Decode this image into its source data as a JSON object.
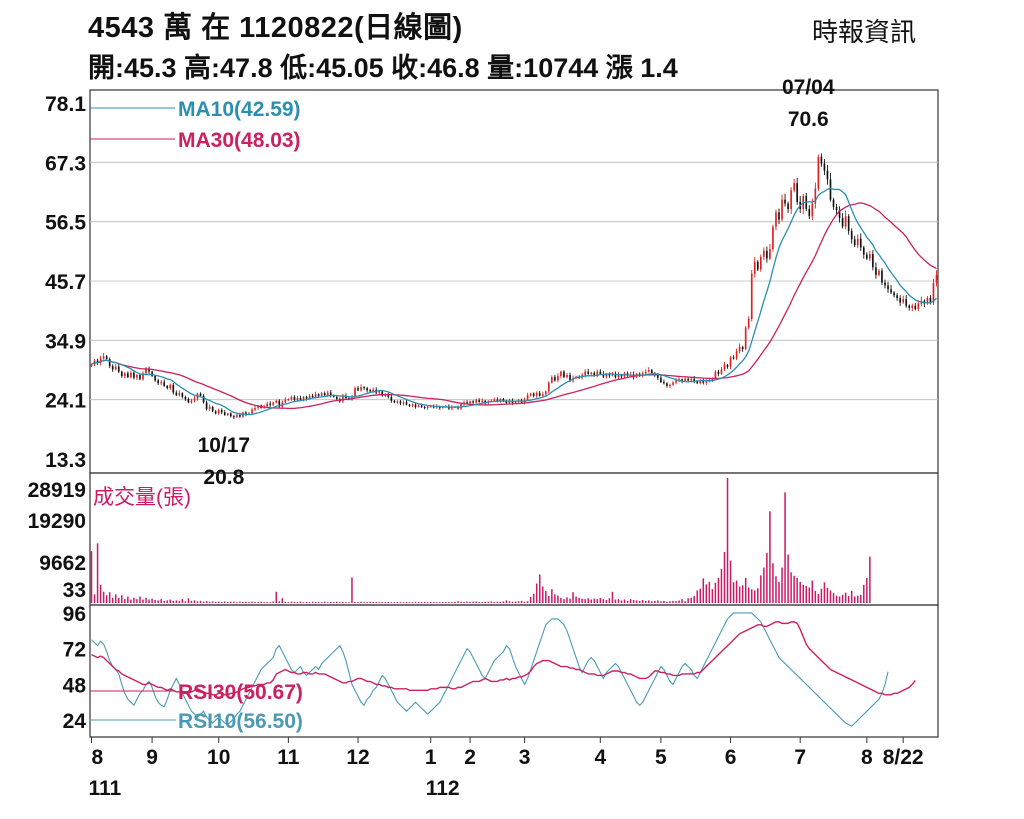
{
  "header": {
    "title": "4543  萬    在 1120822(日線圖)",
    "source": "時報資訊",
    "quote": "開:45.3 高:47.8 低:45.05 收:46.8 量:10744 漲 1.4"
  },
  "colors": {
    "up": "#e02020",
    "down": "#111111",
    "ma10": "#2a8fb0",
    "ma30": "#cc2060",
    "volume": "#cc1a66",
    "rsi10": "#4a9ab5",
    "rsi30": "#cc2060",
    "grid": "#bbbbbb"
  },
  "chart_data": [
    {
      "type": "line",
      "chart": "price",
      "ylim": [
        13.3,
        78.1
      ],
      "y_ticks": [
        "78.1",
        "67.3",
        "56.5",
        "45.7",
        "34.9",
        "24.1",
        "13.3"
      ],
      "grid": true,
      "legend_position": "top-left",
      "x_month_ticks": [
        {
          "label": "8",
          "x": 0
        },
        {
          "label": "9",
          "x": 20
        },
        {
          "label": "10",
          "x": 42
        },
        {
          "label": "11",
          "x": 65
        },
        {
          "label": "12",
          "x": 88
        },
        {
          "label": "1",
          "x": 112
        },
        {
          "label": "2",
          "x": 125
        },
        {
          "label": "3",
          "x": 143
        },
        {
          "label": "4",
          "x": 168
        },
        {
          "label": "5",
          "x": 188
        },
        {
          "label": "6",
          "x": 211
        },
        {
          "label": "7",
          "x": 234
        },
        {
          "label": "8",
          "x": 256
        },
        {
          "label": "8/22",
          "x": 268
        }
      ],
      "x_year_labels": [
        {
          "label": "111",
          "x": 0
        },
        {
          "label": "112",
          "x": 112
        }
      ],
      "close": [
        30.5,
        31.2,
        30.8,
        31.6,
        32.0,
        31.5,
        30.2,
        29.6,
        30.1,
        29.2,
        28.4,
        28.9,
        28.2,
        29.0,
        28.1,
        28.6,
        27.8,
        28.9,
        29.6,
        29.2,
        28.4,
        27.6,
        27.1,
        27.3,
        26.6,
        26.2,
        26.8,
        25.4,
        24.9,
        25.3,
        24.6,
        24.2,
        23.6,
        23.9,
        24.3,
        25.2,
        24.8,
        23.6,
        22.4,
        22.8,
        22.0,
        21.6,
        22.2,
        21.8,
        21.3,
        21.6,
        21.1,
        20.9,
        21.3,
        21.0,
        21.8,
        21.4,
        21.6,
        22.3,
        22.6,
        23.0,
        22.6,
        22.9,
        23.4,
        23.1,
        23.6,
        23.9,
        22.8,
        23.6,
        24.1,
        24.2,
        24.6,
        24.1,
        24.4,
        24.1,
        24.6,
        24.3,
        24.8,
        24.6,
        25.1,
        24.8,
        25.3,
        24.9,
        25.4,
        24.9,
        24.6,
        24.2,
        23.8,
        24.8,
        24.4,
        24.2,
        24.7,
        26.2,
        25.8,
        26.4,
        26.2,
        25.8,
        25.6,
        25.9,
        25.4,
        25.6,
        24.8,
        25.0,
        24.6,
        23.9,
        23.6,
        23.8,
        23.4,
        23.6,
        23.2,
        23.0,
        23.2,
        22.8,
        23.0,
        22.8,
        22.6,
        22.8,
        22.9,
        22.7,
        22.9,
        22.6,
        22.8,
        22.9,
        22.5,
        22.7,
        22.8,
        22.5,
        23.3,
        23.6,
        23.4,
        23.8,
        23.6,
        24.0,
        23.7,
        23.9,
        23.5,
        23.8,
        23.9,
        24.1,
        23.9,
        24.2,
        23.8,
        23.5,
        23.9,
        23.5,
        23.8,
        24.0,
        23.6,
        24.1,
        24.9,
        25.2,
        24.8,
        25.3,
        24.8,
        25.1,
        25.6,
        27.2,
        28.2,
        27.6,
        28.4,
        29.2,
        28.2,
        28.6,
        27.6,
        28.0,
        28.3,
        28.1,
        28.6,
        29.2,
        28.8,
        29.0,
        28.6,
        29.2,
        28.8,
        28.3,
        28.8,
        28.5,
        28.8,
        28.2,
        28.6,
        28.3,
        28.9,
        28.5,
        28.7,
        28.2,
        28.8,
        28.5,
        28.9,
        29.2,
        29.5,
        28.9,
        28.6,
        28.1,
        27.3,
        27.1,
        26.6,
        26.8,
        27.2,
        27.6,
        27.8,
        27.5,
        27.9,
        27.6,
        27.9,
        27.5,
        27.1,
        27.6,
        27.2,
        27.4,
        27.6,
        28.0,
        29.2,
        28.8,
        29.6,
        30.4,
        30.1,
        31.8,
        31.6,
        32.9,
        33.7,
        33.3,
        37.2,
        38.8,
        47.0,
        49.2,
        47.8,
        50.1,
        51.2,
        49.8,
        51.5,
        55.6,
        58.2,
        56.9,
        60.5,
        59.8,
        58.8,
        62.2,
        63.5,
        60.1,
        58.8,
        61.2,
        58.8,
        57.5,
        59.8,
        62.5,
        68.3,
        67.1,
        65.8,
        64.2,
        60.5,
        59.2,
        58.6,
        57.2,
        55.6,
        57.5,
        54.8,
        53.3,
        52.2,
        53.4,
        51.8,
        50.5,
        49.8,
        50.6,
        48.2,
        46.8,
        47.6,
        45.4,
        44.9,
        44.2,
        43.6,
        43.1,
        42.6,
        41.8,
        42.4,
        41.2,
        40.8,
        41.2,
        40.6,
        41.6,
        42.1,
        41.6,
        42.6,
        41.8,
        45.4,
        46.8
      ],
      "ma10_final": 42.59,
      "ma30_final": 48.03,
      "legend": [
        {
          "name": "MA10(42.59)",
          "color": "#2a8fb0"
        },
        {
          "name": "MA30(48.03)",
          "color": "#cc2060"
        }
      ],
      "annotations": [
        {
          "date": "10/17",
          "value": "20.8",
          "index": 47,
          "price": 20.8
        },
        {
          "date": "07/04",
          "value": "70.6",
          "index": 236,
          "price": 70.6
        }
      ]
    },
    {
      "type": "bar",
      "chart": "volume",
      "title": "成交量(張)",
      "y_ticks": [
        "28919",
        "19290",
        "9662",
        "33"
      ],
      "ylim": [
        0,
        28919
      ],
      "values": [
        12000,
        2000,
        13800,
        4200,
        2600,
        1800,
        2500,
        1200,
        2000,
        1200,
        1800,
        900,
        1500,
        800,
        1200,
        900,
        1500,
        800,
        1200,
        800,
        1000,
        700,
        600,
        900,
        500,
        600,
        800,
        500,
        600,
        500,
        900,
        400,
        1100,
        500,
        600,
        400,
        500,
        300,
        450,
        300,
        350,
        250,
        300,
        200,
        350,
        250,
        300,
        300,
        200,
        300,
        250,
        300,
        200,
        300,
        250,
        200,
        300,
        200,
        250,
        200,
        350,
        2600,
        400,
        1100,
        300,
        200,
        300,
        250,
        200,
        300,
        200,
        250,
        200,
        300,
        200,
        250,
        200,
        300,
        200,
        250,
        200,
        300,
        200,
        250,
        200,
        200,
        5900,
        250,
        200,
        300,
        200,
        200,
        300,
        200,
        250,
        200,
        250,
        200,
        250,
        200,
        200,
        250,
        200,
        200,
        250,
        200,
        200,
        250,
        200,
        200,
        250,
        200,
        200,
        250,
        200,
        200,
        200,
        250,
        200,
        200,
        250,
        400,
        300,
        250,
        300,
        250,
        300,
        350,
        200,
        250,
        300,
        300,
        350,
        250,
        300,
        300,
        350,
        600,
        400,
        300,
        350,
        400,
        500,
        300,
        400,
        1400,
        2100,
        4500,
        6600,
        3800,
        2800,
        1600,
        3200,
        2000,
        1700,
        1200,
        900,
        1300,
        1000,
        2500,
        1500,
        1200,
        1000,
        900,
        1100,
        800,
        1000,
        900,
        1200,
        900,
        700,
        1100,
        2600,
        800,
        900,
        600,
        800,
        500,
        900,
        700,
        600,
        500,
        700,
        500,
        600,
        400,
        500,
        600,
        400,
        500,
        300,
        400,
        500,
        450,
        600,
        900,
        400,
        1100,
        1200,
        1600,
        2900,
        3300,
        5700,
        4300,
        4900,
        3200,
        4700,
        5800,
        7900,
        11800,
        28919,
        9800,
        4800,
        5200,
        3800,
        4100,
        5800,
        3600,
        3200,
        2900,
        3400,
        6400,
        8200,
        11600,
        21200,
        9200,
        6200,
        4900,
        8200,
        25600,
        11200,
        7100,
        6300,
        5800,
        4900,
        4200,
        3900,
        3600,
        5200,
        2800,
        2100,
        3300,
        4800,
        3500,
        2900,
        2300,
        1700,
        1500,
        1900,
        2400,
        1600,
        2800,
        1500,
        1700,
        1900,
        4200,
        5800,
        10744
      ]
    },
    {
      "type": "line",
      "chart": "rsi",
      "y_ticks": [
        "96",
        "72",
        "48",
        "24"
      ],
      "ylim": [
        14,
        100
      ],
      "series": [
        {
          "name": "RSI30(50.67)",
          "color": "#cc2060",
          "values": [
            68,
            67,
            66,
            67,
            66,
            64,
            62,
            60,
            58,
            57,
            55,
            54,
            53,
            52,
            51,
            50,
            49,
            48,
            48,
            49,
            48,
            47,
            46,
            46,
            45,
            44,
            45,
            44,
            43,
            43,
            42,
            42,
            42,
            43,
            44,
            45,
            44,
            43,
            42,
            42,
            41,
            41,
            42,
            42,
            41,
            41,
            42,
            42,
            43,
            44,
            45,
            46,
            46,
            47,
            47,
            48,
            48,
            48,
            49,
            49,
            51,
            55,
            56,
            57,
            58,
            57,
            56,
            56,
            55,
            55,
            56,
            56,
            55,
            55,
            56,
            55,
            55,
            55,
            54,
            53,
            52,
            51,
            50,
            49,
            49,
            50,
            50,
            51,
            52,
            52,
            51,
            50,
            50,
            49,
            48,
            48,
            47,
            47,
            46,
            46,
            45,
            45,
            45,
            45,
            45,
            44,
            44,
            44,
            44,
            44,
            44,
            44,
            45,
            45,
            45,
            46,
            46,
            46,
            46,
            45,
            45,
            46,
            46,
            47,
            48,
            49,
            50,
            50,
            50,
            51,
            52,
            51,
            50,
            50,
            50,
            51,
            51,
            52,
            51,
            52,
            52,
            53,
            53,
            54,
            55,
            57,
            60,
            62,
            63,
            64,
            64,
            64,
            63,
            62,
            61,
            60,
            60,
            60,
            59,
            59,
            58,
            58,
            57,
            56,
            55,
            55,
            55,
            54,
            54,
            54,
            55,
            56,
            57,
            57,
            57,
            56,
            56,
            55,
            55,
            54,
            53,
            52,
            52,
            52,
            53,
            55,
            57,
            57,
            56,
            56,
            55,
            55,
            54,
            54,
            54,
            55,
            55,
            55,
            55,
            55,
            56,
            56,
            58,
            60,
            62,
            64,
            66,
            68,
            70,
            72,
            74,
            76,
            78,
            80,
            82,
            83,
            84,
            85,
            86,
            87,
            88,
            88,
            87,
            87,
            88,
            89,
            90,
            90,
            89,
            89,
            89,
            90,
            90,
            89,
            85,
            80,
            75,
            72,
            70,
            68,
            66,
            64,
            62,
            60,
            58,
            57,
            56,
            55,
            54,
            53,
            52,
            51,
            50,
            49,
            48,
            47,
            46,
            45,
            44,
            43,
            42,
            42,
            41,
            41,
            41,
            42,
            42,
            43,
            44,
            45,
            46,
            48,
            50.67
          ]
        },
        {
          "name": "RSI10(56.50)",
          "color": "#4a9ab5",
          "values": [
            78,
            76,
            74,
            77,
            75,
            70,
            64,
            60,
            58,
            55,
            48,
            42,
            38,
            36,
            34,
            38,
            42,
            44,
            48,
            50,
            46,
            40,
            36,
            34,
            33,
            38,
            44,
            48,
            52,
            48,
            42,
            38,
            34,
            30,
            28,
            26,
            28,
            30,
            26,
            24,
            22,
            24,
            26,
            24,
            22,
            21,
            23,
            25,
            28,
            30,
            34,
            38,
            42,
            46,
            50,
            54,
            58,
            60,
            62,
            64,
            66,
            72,
            74,
            70,
            66,
            62,
            58,
            56,
            58,
            60,
            56,
            54,
            56,
            58,
            60,
            58,
            62,
            64,
            66,
            68,
            70,
            72,
            74,
            70,
            64,
            56,
            48,
            44,
            40,
            36,
            34,
            38,
            40,
            44,
            46,
            50,
            54,
            52,
            48,
            44,
            40,
            36,
            34,
            32,
            30,
            32,
            34,
            36,
            34,
            32,
            30,
            28,
            30,
            32,
            34,
            36,
            40,
            44,
            48,
            52,
            56,
            60,
            64,
            68,
            72,
            70,
            66,
            62,
            58,
            54,
            52,
            56,
            60,
            64,
            66,
            68,
            70,
            74,
            72,
            66,
            60,
            56,
            52,
            48,
            52,
            58,
            64,
            70,
            76,
            82,
            88,
            90,
            92,
            92,
            92,
            90,
            88,
            84,
            78,
            72,
            66,
            60,
            56,
            60,
            64,
            66,
            64,
            60,
            56,
            52,
            56,
            58,
            60,
            62,
            60,
            56,
            52,
            48,
            44,
            40,
            36,
            34,
            36,
            40,
            44,
            48,
            52,
            56,
            60,
            58,
            54,
            50,
            48,
            52,
            56,
            60,
            62,
            60,
            58,
            54,
            52,
            56,
            60,
            64,
            68,
            72,
            76,
            80,
            84,
            88,
            92,
            94,
            96,
            96,
            96,
            96,
            96,
            96,
            96,
            94,
            92,
            90,
            86,
            82,
            78,
            74,
            70,
            66,
            64,
            62,
            60,
            58,
            56,
            54,
            52,
            50,
            48,
            46,
            44,
            42,
            40,
            38,
            36,
            34,
            32,
            30,
            28,
            26,
            24,
            22,
            21,
            20,
            22,
            24,
            26,
            28,
            30,
            32,
            34,
            36,
            38,
            42,
            48,
            56.5
          ]
        }
      ]
    }
  ]
}
